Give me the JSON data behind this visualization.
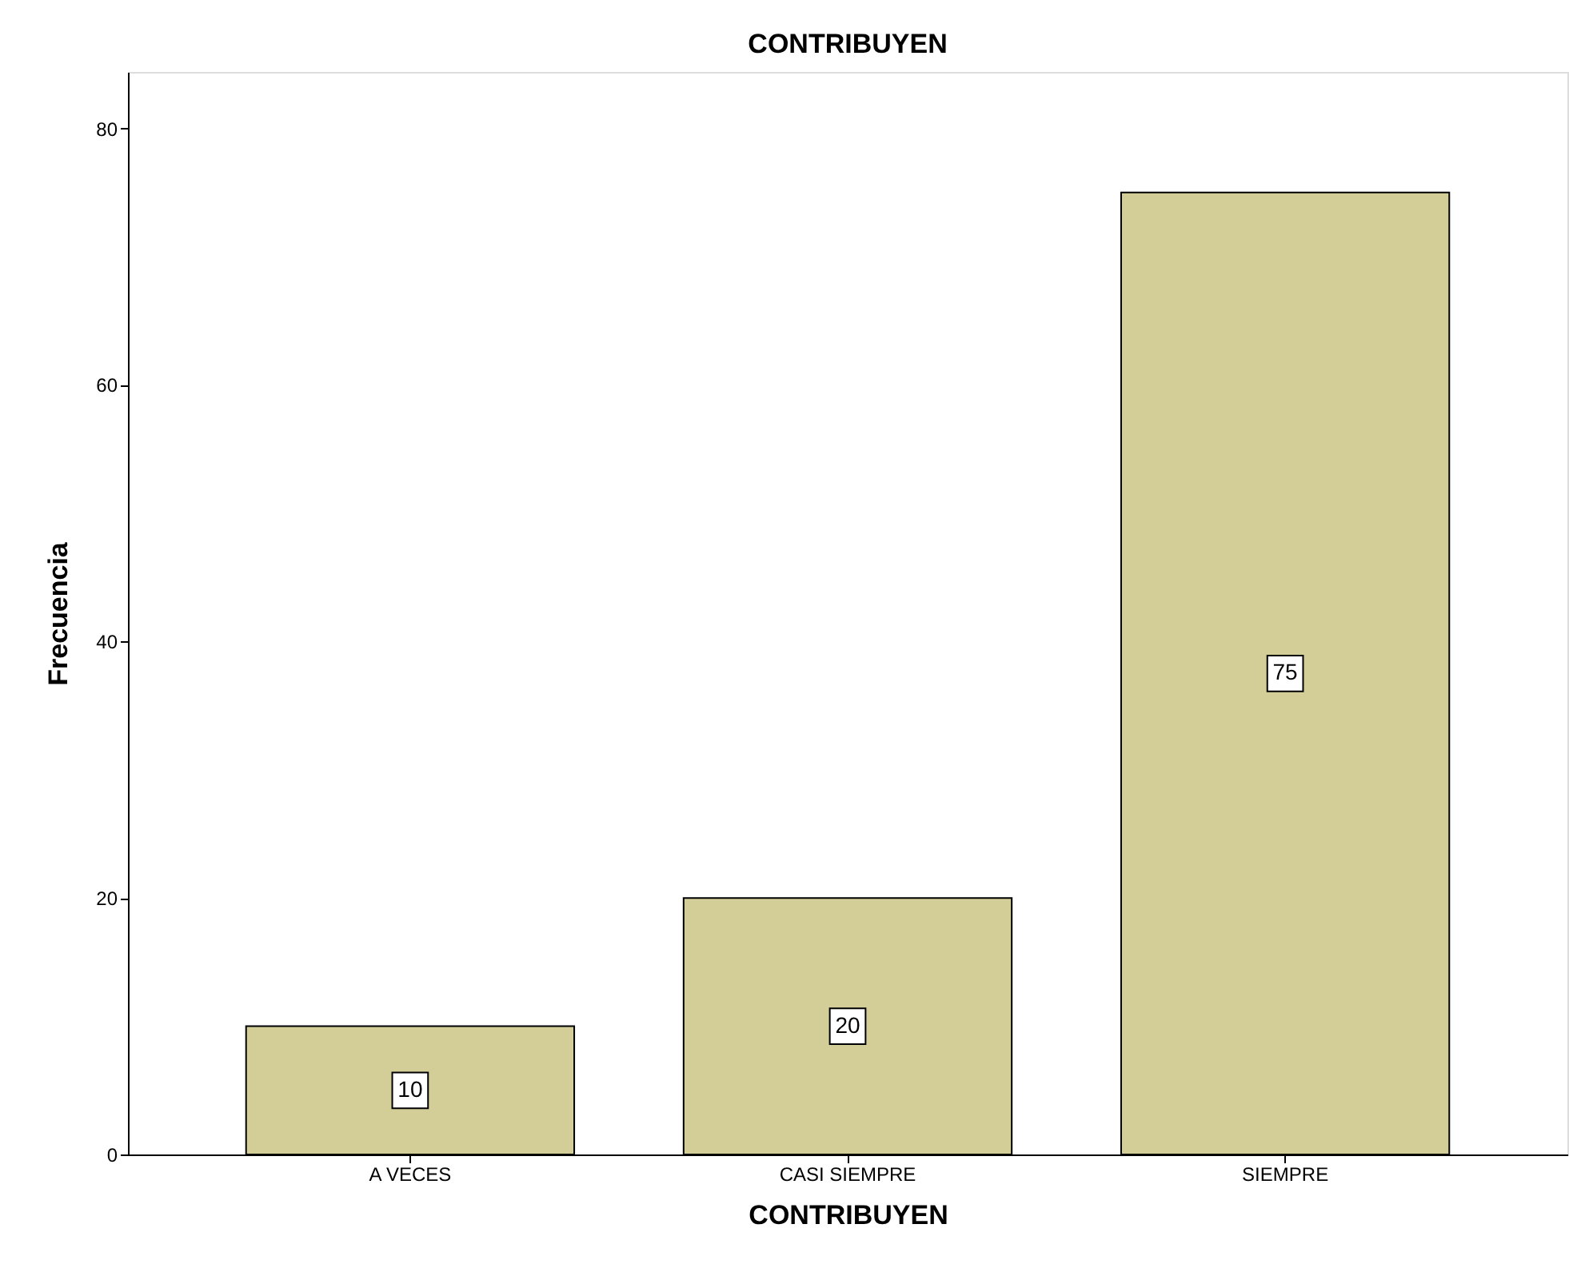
{
  "chart_data": {
    "type": "bar",
    "title": "CONTRIBUYEN",
    "xlabel": "CONTRIBUYEN",
    "ylabel": "Frecuencia",
    "categories": [
      "A VECES",
      "CASI SIEMPRE",
      "SIEMPRE"
    ],
    "values": [
      10,
      20,
      75
    ],
    "color": "#d3ce97",
    "ylim": [
      0,
      84.4
    ],
    "yticks": [
      0,
      20,
      40,
      60,
      80
    ],
    "grid": false,
    "data_labels": true
  }
}
